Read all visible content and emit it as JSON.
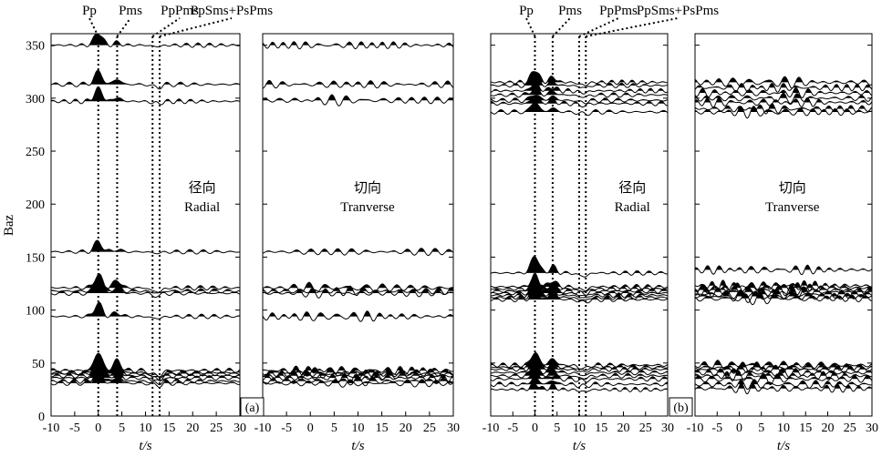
{
  "chart_data": [
    {
      "type": "line",
      "panel_label": "(a)",
      "phase_labels": [
        "Pp",
        "Pms",
        "PpPms",
        "PpSms+PsPms"
      ],
      "phase_times": [
        0,
        4,
        11.5,
        13
      ],
      "ylabel": "Baz",
      "xlabel": "t/s",
      "xlim": [
        -10,
        30
      ],
      "ylim": [
        0,
        360
      ],
      "xticks": [
        "-10",
        "-5",
        "0",
        "5",
        "10",
        "15",
        "20",
        "25",
        "30"
      ],
      "yticks": [
        "0",
        "50",
        "100",
        "150",
        "200",
        "250",
        "300",
        "350"
      ],
      "grid": false,
      "subplots": [
        {
          "title_cn": "径向",
          "title_en": "Radial",
          "traces_baz": [
            350,
            313,
            297,
            155,
            121,
            118,
            116,
            94,
            43,
            41,
            40,
            38,
            36,
            33,
            31
          ],
          "pp_amplitude": [
            1.0,
            1.0,
            1.0,
            0.8,
            1.0,
            0.8,
            0.8,
            1.0,
            1.4,
            1.2,
            1.0,
            1.0,
            0.8,
            0.8,
            0.6
          ],
          "pms_amplitude": [
            0.2,
            0.4,
            0.3,
            0.2,
            0.6,
            0.3,
            0.4,
            0.3,
            0.8,
            0.6,
            0.5,
            0.5,
            0.4,
            0.3,
            0.3
          ]
        },
        {
          "title_cn": "切向",
          "title_en": "Tranverse",
          "traces_baz": [
            350,
            313,
            298,
            155,
            121,
            118,
            116,
            94,
            43,
            41,
            40,
            38,
            36,
            33,
            31
          ],
          "pp_amplitude": [
            0.2,
            0.2,
            0.3,
            0.1,
            0.3,
            0.2,
            0.2,
            0.4,
            0.3,
            0.3,
            0.2,
            0.2,
            0.2,
            0.2,
            0.2
          ],
          "pms_amplitude": [
            0.2,
            0.2,
            0.3,
            0.1,
            0.3,
            0.2,
            0.2,
            0.4,
            0.3,
            0.3,
            0.2,
            0.2,
            0.2,
            0.2,
            0.2
          ]
        }
      ]
    },
    {
      "type": "line",
      "panel_label": "(b)",
      "phase_labels": [
        "Pp",
        "Pms",
        "PpPms",
        "PpSms+PsPms"
      ],
      "phase_times": [
        0,
        4,
        10,
        11.5
      ],
      "ylabel": "",
      "xlabel": "t/s",
      "xlim": [
        -10,
        30
      ],
      "ylim": [
        0,
        360
      ],
      "xticks": [
        "-10",
        "-5",
        "0",
        "5",
        "10",
        "15",
        "20",
        "25",
        "30"
      ],
      "yticks": [],
      "grid": false,
      "subplots": [
        {
          "title_cn": "径向",
          "title_en": "Radial",
          "traces_baz": [
            315,
            312,
            307,
            303,
            298,
            295,
            287,
            135,
            122,
            120,
            118,
            116,
            114,
            112,
            110,
            48,
            46,
            44,
            41,
            38,
            35,
            30,
            25
          ],
          "pp_amplitude": [
            1.0,
            0.6,
            0.6,
            0.6,
            0.5,
            0.5,
            0.8,
            1.4,
            0.9,
            0.8,
            0.8,
            0.7,
            0.7,
            0.6,
            0.6,
            1.0,
            0.8,
            0.8,
            0.7,
            0.7,
            0.6,
            0.5,
            0.5
          ],
          "pms_amplitude": [
            0.4,
            0.3,
            0.3,
            0.3,
            0.3,
            0.3,
            0.3,
            0.5,
            0.5,
            0.4,
            0.4,
            0.4,
            0.4,
            0.4,
            0.4,
            0.5,
            0.4,
            0.4,
            0.4,
            0.4,
            0.3,
            0.3,
            0.3
          ]
        },
        {
          "title_cn": "切向",
          "title_en": "Tranverse",
          "traces_baz": [
            315,
            310,
            305,
            300,
            296,
            290,
            287,
            138,
            123,
            121,
            119,
            117,
            115,
            113,
            111,
            48,
            46,
            44,
            41,
            38,
            35,
            30,
            26
          ],
          "pp_amplitude": [
            0.4,
            0.3,
            0.3,
            0.3,
            0.3,
            0.3,
            0.4,
            0.3,
            0.4,
            0.4,
            0.4,
            0.4,
            0.4,
            0.4,
            0.4,
            0.3,
            0.3,
            0.3,
            0.3,
            0.3,
            0.3,
            0.3,
            0.3
          ],
          "pms_amplitude": [
            0.4,
            0.3,
            0.3,
            0.3,
            0.3,
            0.3,
            0.4,
            0.3,
            0.4,
            0.4,
            0.4,
            0.4,
            0.4,
            0.4,
            0.4,
            0.3,
            0.3,
            0.3,
            0.3,
            0.3,
            0.3,
            0.3,
            0.3
          ]
        }
      ]
    }
  ]
}
